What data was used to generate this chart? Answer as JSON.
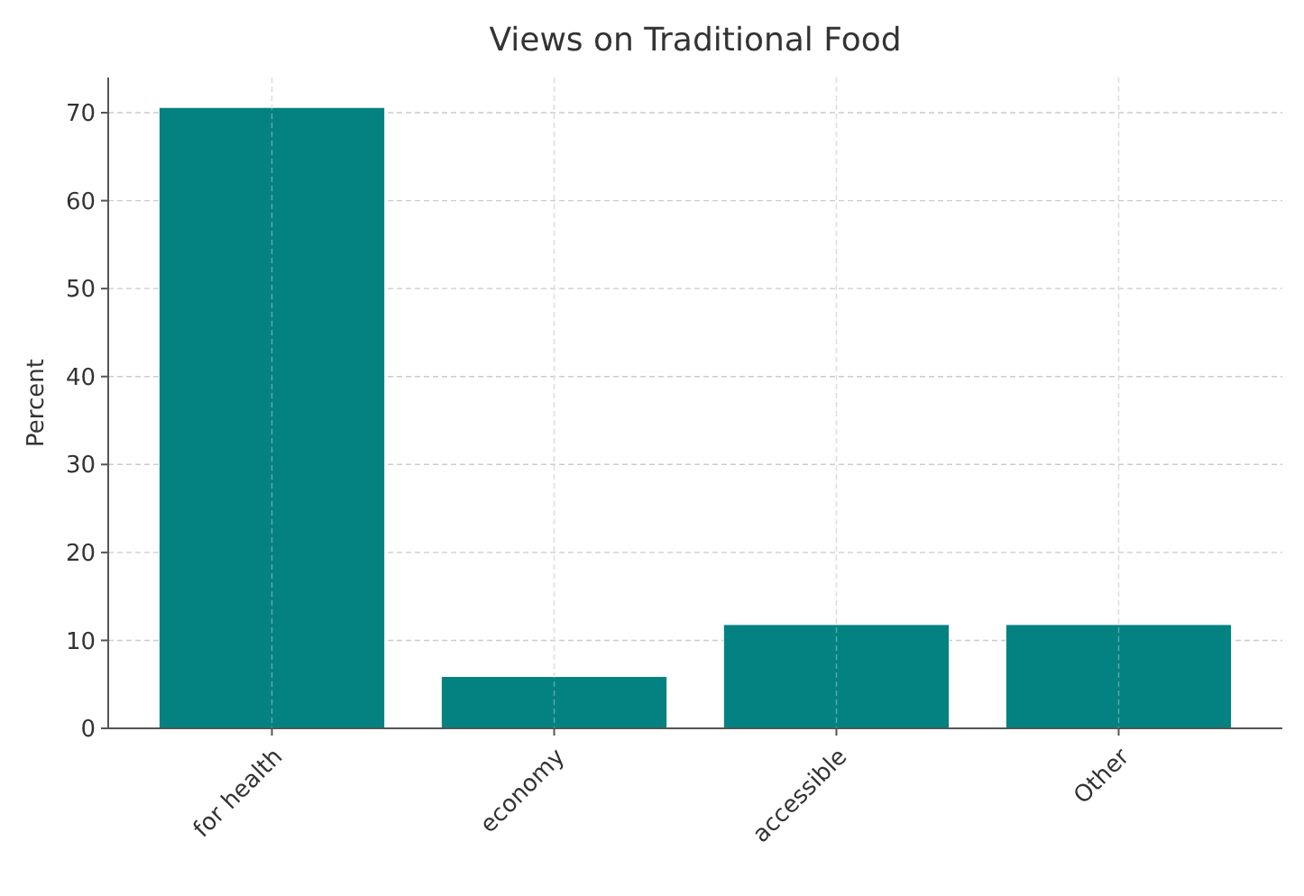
{
  "chart_data": {
    "type": "bar",
    "title": "Views on Traditional Food",
    "ylabel": "Percent",
    "categories": [
      "for health",
      "economy",
      "accessible",
      "Other"
    ],
    "values": [
      70.6,
      5.9,
      11.8,
      11.8
    ],
    "color": "#008080",
    "ylim": [
      0,
      74
    ],
    "yticks": [
      0,
      10,
      20,
      30,
      40,
      50,
      60,
      70
    ],
    "grid": true
  }
}
